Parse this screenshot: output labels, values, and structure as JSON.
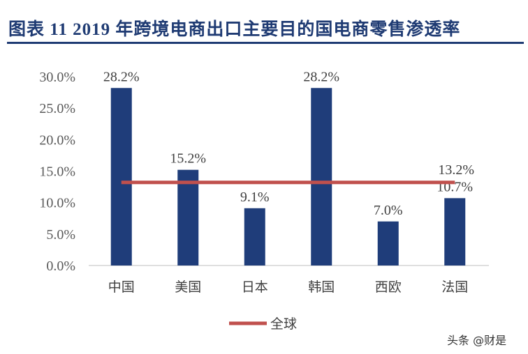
{
  "title": "图表 11   2019 年跨境电商出口主要目的国电商零售渗透率",
  "watermark": "头条 @财是",
  "chart_data": {
    "type": "bar",
    "title": "2019 年跨境电商出口主要目的国电商零售渗透率",
    "categories": [
      "中国",
      "美国",
      "日本",
      "韩国",
      "西欧",
      "法国"
    ],
    "series": [
      {
        "values": [
          28.2,
          15.2,
          9.1,
          28.2,
          7.0,
          10.7
        ],
        "color": "#1f3d7a"
      }
    ],
    "line_series": {
      "name": "全球",
      "value": 13.2,
      "color": "#c0504d"
    },
    "ylim": [
      0,
      30
    ],
    "yticks": [
      0,
      5,
      10,
      15,
      20,
      25,
      30
    ],
    "ytick_format": "percent_1dp",
    "grid": false,
    "legend": "bottom"
  }
}
